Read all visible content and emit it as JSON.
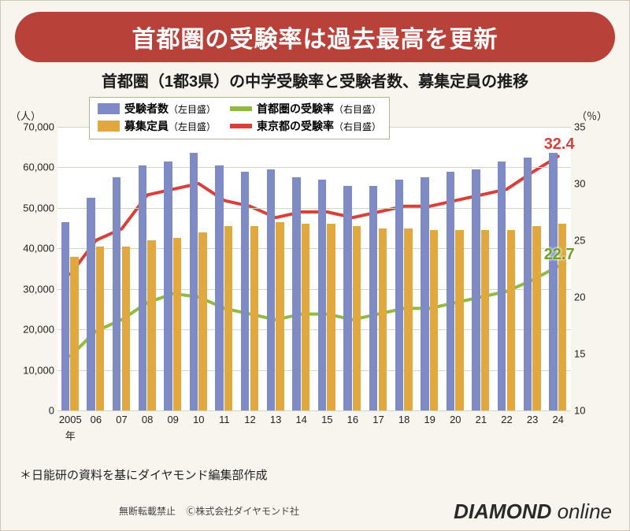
{
  "banner": {
    "text": "首都圏の受験率は過去最高を更新",
    "bg": "#b8413a",
    "color": "#ffffff",
    "fontsize": 30
  },
  "subtitle": {
    "pre": "首都圏",
    "paren": "（1都3県）",
    "post": "の中学受験率と受験者数、募集定員の推移",
    "fontsize": 20,
    "color": "#1a1a1a"
  },
  "chart": {
    "background": "#ffffff",
    "grid_color": "#d0d7c3",
    "years_full_first": "2005",
    "year_suffix": "年",
    "years": [
      "2005",
      "06",
      "07",
      "08",
      "09",
      "10",
      "11",
      "12",
      "13",
      "14",
      "15",
      "16",
      "17",
      "18",
      "19",
      "20",
      "21",
      "22",
      "23",
      "24"
    ],
    "y_left": {
      "unit": "（人）",
      "min": 0,
      "max": 70000,
      "step": 10000,
      "ticks": [
        "0",
        "10,000",
        "20,000",
        "30,000",
        "40,000",
        "50,000",
        "60,000",
        "70,000"
      ]
    },
    "y_right": {
      "unit": "（％）",
      "min": 10,
      "max": 35,
      "ticks": [
        10,
        15,
        20,
        25,
        30,
        35
      ]
    },
    "bars": {
      "group_width_frac": 0.7,
      "series": [
        {
          "name": "examinees",
          "label": "受験者数",
          "scale": "左目盛",
          "color": "#7e8bc4",
          "values": [
            46500,
            52500,
            57500,
            60500,
            61500,
            63500,
            60500,
            59000,
            59500,
            57500,
            57000,
            55500,
            55500,
            57000,
            57500,
            59000,
            59500,
            61500,
            62500,
            63500
          ]
        },
        {
          "name": "capacity",
          "label": "募集定員",
          "scale": "左目盛",
          "color": "#e0a83f",
          "values": [
            38000,
            40500,
            40500,
            42000,
            42500,
            44000,
            45500,
            45500,
            46500,
            46000,
            46000,
            45500,
            45000,
            45000,
            44500,
            44500,
            44500,
            44500,
            45500,
            46000
          ]
        }
      ]
    },
    "lines": [
      {
        "name": "tokyo_rate",
        "label": "東京都の受験率",
        "scale": "右目盛",
        "color": "#d9403a",
        "halo": "#ffffff",
        "width": 4,
        "halo_width": 7,
        "values": [
          22.0,
          25.0,
          26.0,
          29.0,
          29.5,
          30.0,
          28.5,
          28.0,
          27.0,
          27.5,
          27.5,
          27.0,
          27.5,
          28.0,
          28.0,
          28.5,
          29.0,
          29.5,
          31.0,
          32.4
        ],
        "end_label": "32.4",
        "end_label_color": "#d9403a"
      },
      {
        "name": "metro_rate",
        "label": "首都圏の受験率",
        "scale": "右目盛",
        "color": "#8fbb3e",
        "halo": "#ffffff",
        "width": 4,
        "halo_width": 7,
        "values": [
          14.8,
          17.0,
          18.0,
          19.5,
          20.3,
          20.0,
          19.0,
          18.5,
          18.0,
          18.5,
          18.5,
          18.0,
          18.5,
          19.0,
          19.0,
          19.5,
          20.0,
          20.5,
          21.5,
          22.7
        ],
        "end_label": "22.7",
        "end_label_color": "#6fa026"
      }
    ],
    "legend": {
      "border": "#b0b48f",
      "items": [
        {
          "kind": "swatch",
          "color": "#7e8bc4",
          "label": "受験者数",
          "scale": "（左目盛）"
        },
        {
          "kind": "line",
          "color": "#8fbb3e",
          "label": "首都圏の受験率",
          "scale": "（右目盛）"
        },
        {
          "kind": "swatch",
          "color": "#e0a83f",
          "label": "募集定員",
          "scale": "（左目盛）"
        },
        {
          "kind": "line",
          "color": "#d9403a",
          "label": "東京都の受験率",
          "scale": "（右目盛）"
        }
      ]
    }
  },
  "footnote": "＊日能研の資料を基にダイヤモンド編集部作成",
  "copyright": {
    "a": "無断転載禁止",
    "b": "Ⓒ株式会社ダイヤモンド社"
  },
  "brand": {
    "bold": "DIAMOND",
    "thin": " online",
    "fontsize": 26
  }
}
